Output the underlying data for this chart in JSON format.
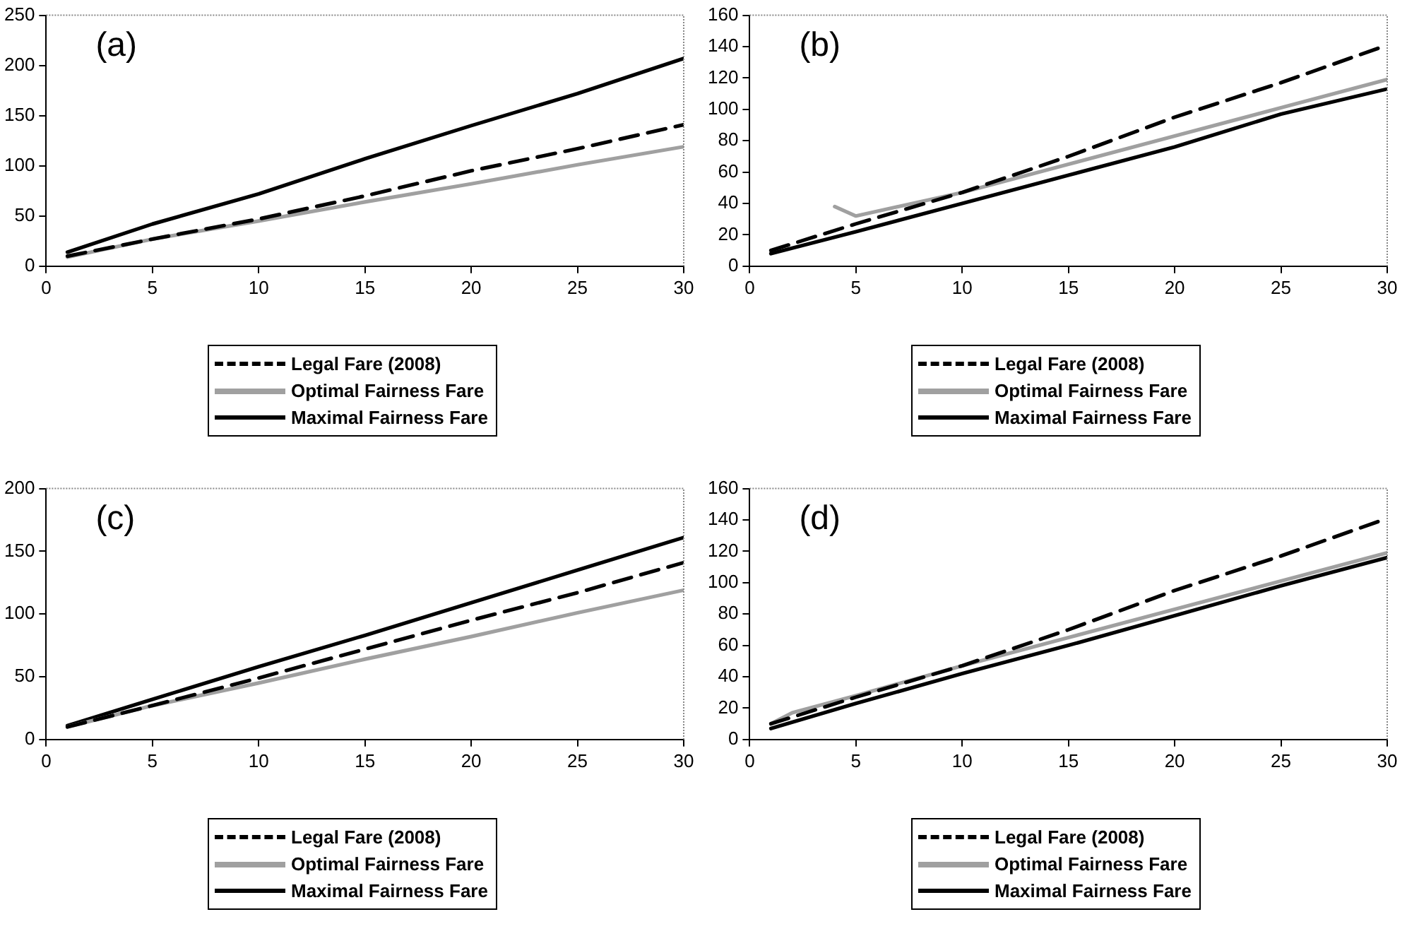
{
  "chart_data": [
    {
      "type": "line",
      "title": "(a)",
      "xlim": [
        0,
        30
      ],
      "xticks": [
        0,
        5,
        10,
        15,
        20,
        25,
        30
      ],
      "ylim": [
        0,
        250
      ],
      "yticks": [
        0,
        50,
        100,
        150,
        200,
        250
      ],
      "grid": false,
      "legend": "bottom",
      "marker": "none",
      "series": [
        {
          "name": "Legal Fare (2008)",
          "color": "#000000",
          "line_style": "dashed",
          "x": [
            1,
            5,
            10,
            15,
            20,
            25,
            30
          ],
          "values": [
            10,
            27,
            47,
            70,
            95,
            117,
            141
          ]
        },
        {
          "name": "Optimal Fairness Fare",
          "color": "#a0a0a0",
          "line_style": "solid",
          "x": [
            1,
            5,
            10,
            15,
            20,
            25,
            30
          ],
          "values": [
            9,
            27,
            45,
            64,
            82,
            101,
            119
          ]
        },
        {
          "name": "Maximal Fairness Fare",
          "color": "#000000",
          "line_style": "solid",
          "x": [
            1,
            5,
            10,
            15,
            20,
            25,
            30
          ],
          "values": [
            14,
            42,
            72,
            107,
            140,
            172,
            207
          ]
        }
      ]
    },
    {
      "type": "line",
      "title": "(b)",
      "xlim": [
        0,
        30
      ],
      "xticks": [
        0,
        5,
        10,
        15,
        20,
        25,
        30
      ],
      "ylim": [
        0,
        160
      ],
      "yticks": [
        0,
        20,
        40,
        60,
        80,
        100,
        120,
        140,
        160
      ],
      "grid": false,
      "legend": "bottom",
      "marker": "none",
      "series": [
        {
          "name": "Legal Fare (2008)",
          "color": "#000000",
          "line_style": "dashed",
          "x": [
            1,
            5,
            10,
            15,
            20,
            25,
            30
          ],
          "values": [
            10,
            27,
            47,
            70,
            95,
            117,
            141
          ]
        },
        {
          "name": "Optimal Fairness Fare",
          "color": "#a0a0a0",
          "line_style": "solid",
          "x": [
            4,
            5,
            10,
            15,
            20,
            25,
            30
          ],
          "values": [
            38,
            32,
            47,
            65,
            83,
            101,
            119
          ]
        },
        {
          "name": "Maximal Fairness Fare",
          "color": "#000000",
          "line_style": "solid",
          "x": [
            1,
            5,
            10,
            15,
            20,
            25,
            30
          ],
          "values": [
            8,
            22,
            40,
            58,
            76,
            97,
            113
          ]
        }
      ]
    },
    {
      "type": "line",
      "title": "(c)",
      "xlim": [
        0,
        30
      ],
      "xticks": [
        0,
        5,
        10,
        15,
        20,
        25,
        30
      ],
      "ylim": [
        0,
        200
      ],
      "yticks": [
        0,
        50,
        100,
        150,
        200
      ],
      "grid": false,
      "legend": "bottom",
      "marker": "none",
      "series": [
        {
          "name": "Legal Fare (2008)",
          "color": "#000000",
          "line_style": "dashed",
          "x": [
            1,
            5,
            10,
            15,
            20,
            25,
            30
          ],
          "values": [
            10,
            27,
            49,
            72,
            95,
            117,
            141
          ]
        },
        {
          "name": "Optimal Fairness Fare",
          "color": "#a0a0a0",
          "line_style": "solid",
          "x": [
            1,
            5,
            10,
            15,
            20,
            25,
            30
          ],
          "values": [
            10,
            27,
            45,
            64,
            82,
            101,
            119
          ]
        },
        {
          "name": "Maximal Fairness Fare",
          "color": "#000000",
          "line_style": "solid",
          "x": [
            1,
            5,
            10,
            15,
            20,
            25,
            30
          ],
          "values": [
            11,
            32,
            58,
            83,
            109,
            135,
            161
          ]
        }
      ]
    },
    {
      "type": "line",
      "title": "(d)",
      "xlim": [
        0,
        30
      ],
      "xticks": [
        0,
        5,
        10,
        15,
        20,
        25,
        30
      ],
      "ylim": [
        0,
        160
      ],
      "yticks": [
        0,
        20,
        40,
        60,
        80,
        100,
        120,
        140,
        160
      ],
      "grid": false,
      "legend": "bottom",
      "marker": "none",
      "series": [
        {
          "name": "Legal Fare (2008)",
          "color": "#000000",
          "line_style": "dashed",
          "x": [
            1,
            5,
            10,
            15,
            20,
            25,
            30
          ],
          "values": [
            10,
            27,
            47,
            70,
            95,
            117,
            141
          ]
        },
        {
          "name": "Optimal Fairness Fare",
          "color": "#a0a0a0",
          "line_style": "solid",
          "x": [
            1,
            2,
            5,
            10,
            15,
            20,
            25,
            30
          ],
          "values": [
            10,
            17,
            28,
            47,
            65,
            83,
            101,
            119
          ]
        },
        {
          "name": "Maximal Fairness Fare",
          "color": "#000000",
          "line_style": "solid",
          "x": [
            1,
            5,
            10,
            15,
            20,
            25,
            30
          ],
          "values": [
            7,
            23,
            42,
            60,
            79,
            98,
            116
          ]
        }
      ]
    }
  ]
}
